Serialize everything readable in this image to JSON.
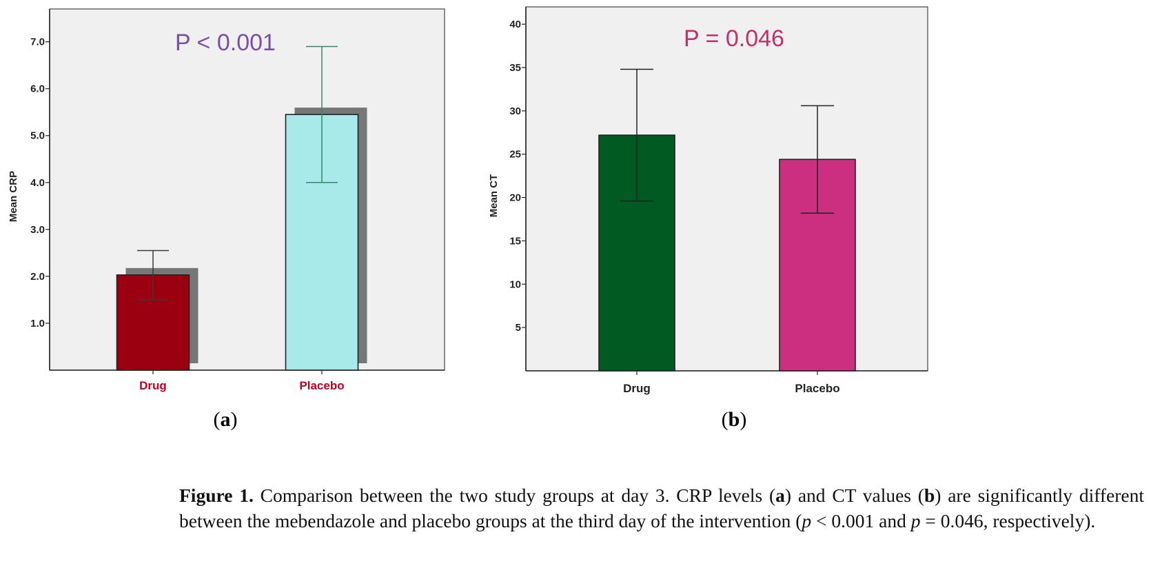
{
  "chart_data": [
    {
      "type": "bar",
      "panel": "(a)",
      "panel_letter": "a",
      "title": "P < 0.001",
      "title_color": "#7b4fa8",
      "xlabel": "",
      "ylabel": "Mean CRP",
      "ylim": [
        0,
        7.7
      ],
      "yticks": [
        1.0,
        2.0,
        3.0,
        4.0,
        5.0,
        6.0,
        7.0
      ],
      "ytick_labels": [
        "1.0",
        "2.0",
        "3.0",
        "4.0",
        "5.0",
        "6.0",
        "7.0"
      ],
      "categories": [
        "Drug",
        "Placebo"
      ],
      "category_label_color": "#c00020",
      "values": [
        2.03,
        5.45
      ],
      "error_low": [
        1.5,
        4.0
      ],
      "error_high": [
        2.55,
        6.9
      ],
      "bar_colors": [
        "#9a0010",
        "#a8eaea"
      ],
      "error_colors": [
        "#3a3a3a",
        "#2f8a6a"
      ],
      "shadow": true,
      "shadow_color": "#777777"
    },
    {
      "type": "bar",
      "panel": "(b)",
      "panel_letter": "b",
      "title": "P = 0.046",
      "title_color": "#c0306a",
      "xlabel": "",
      "ylabel": "Mean CT",
      "ylim": [
        0,
        42
      ],
      "yticks": [
        5,
        10,
        15,
        20,
        25,
        30,
        35,
        40
      ],
      "ytick_labels": [
        "5",
        "10",
        "15",
        "20",
        "25",
        "30",
        "35",
        "40"
      ],
      "categories": [
        "Drug",
        "Placebo"
      ],
      "category_label_color": "#222222",
      "values": [
        27.2,
        24.4
      ],
      "error_low": [
        19.6,
        18.2
      ],
      "error_high": [
        34.8,
        30.6
      ],
      "bar_colors": [
        "#005a22",
        "#cc2f80"
      ],
      "error_colors": [
        "#222222",
        "#222222"
      ],
      "shadow": false,
      "shadow_color": ""
    }
  ],
  "caption": {
    "label": "Figure 1.",
    "text_1": " Comparison between the two study groups at day 3. CRP levels (",
    "ref_a": "a",
    "text_2": ") and CT values (",
    "ref_b": "b",
    "text_3": ") are significantly different between the mebendazole and placebo groups at the third day of the intervention (",
    "p1": "p",
    "text_4": " < 0.001 and ",
    "p2": "p",
    "text_5": " = 0.046, respectively)."
  }
}
